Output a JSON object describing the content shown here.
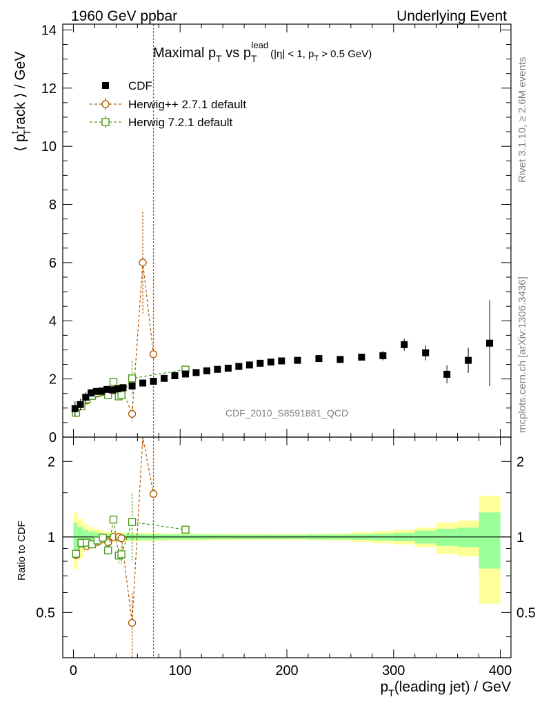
{
  "header": {
    "left": "1960 GeV ppbar",
    "right": "Underlying Event"
  },
  "side": {
    "rivet": "Rivet 3.1.10, ≥ 2.6M events",
    "mcplots": "mcplots.cern.ch [arXiv:1306.3436]"
  },
  "watermark": "CDF_2010_S8591881_QCD",
  "title": {
    "main": "Maximal p",
    "sub1": "T",
    "vs": " vs p",
    "sub2": "T",
    "sup": "lead",
    "cond": "(|η| < 1, p",
    "cond_sub": "T",
    "cond_end": " > 0.5 GeV)"
  },
  "ylabel_top": {
    "a": "⟨ p",
    "sup": "t",
    "sub": "T",
    "b": "rack ⟩ / GeV"
  },
  "ylabel_bottom": "Ratio to CDF",
  "xlabel": {
    "a": "p",
    "sub": "T",
    "b": "(leading jet) / GeV"
  },
  "colors": {
    "cdf": "#000000",
    "herwigpp": "#b35900",
    "herwig7": "#4c9a1a",
    "band_inner": "#99ff99",
    "band_outer": "#ffff99"
  },
  "chart_data": {
    "type": "scatter",
    "xlim": [
      -10,
      410
    ],
    "ylim": [
      0,
      14.2
    ],
    "ratio_ylim": [
      0.33,
      2.5
    ],
    "xticks": [
      0,
      100,
      200,
      300,
      400
    ],
    "yticks": [
      0,
      2,
      4,
      6,
      8,
      10,
      12,
      14
    ],
    "ratio_yticks": [
      0.5,
      1,
      2
    ],
    "legend_position": "top-left",
    "series": [
      {
        "name": "CDF",
        "key": "cdf",
        "marker": "filled-square",
        "x": [
          1.5,
          6.5,
          11.5,
          16.5,
          21.5,
          26.5,
          31.5,
          36.5,
          41.5,
          46.5,
          55,
          65,
          75,
          85,
          95,
          105,
          115,
          125,
          135,
          145,
          155,
          165,
          175,
          185,
          195,
          210,
          230,
          250,
          270,
          290,
          310,
          330,
          350,
          370,
          390
        ],
        "y": [
          0.98,
          1.12,
          1.37,
          1.52,
          1.57,
          1.58,
          1.64,
          1.62,
          1.66,
          1.7,
          1.76,
          1.86,
          1.92,
          2.02,
          2.11,
          2.17,
          2.22,
          2.28,
          2.33,
          2.37,
          2.43,
          2.48,
          2.54,
          2.58,
          2.62,
          2.64,
          2.7,
          2.67,
          2.75,
          2.8,
          3.18,
          2.9,
          2.16,
          2.64,
          3.23
        ],
        "err_stat": [
          0.06,
          0.05,
          0.05,
          0.05,
          0.05,
          0.05,
          0.05,
          0.05,
          0.05,
          0.05,
          0.05,
          0.05,
          0.05,
          0.05,
          0.05,
          0.05,
          0.05,
          0.05,
          0.05,
          0.05,
          0.05,
          0.05,
          0.05,
          0.05,
          0.05,
          0.05,
          0.06,
          0.06,
          0.07,
          0.09,
          0.12,
          0.17,
          0.17,
          0.22,
          0.5
        ],
        "err_tot": [
          0.25,
          0.2,
          0.17,
          0.14,
          0.12,
          0.1,
          0.08,
          0.08,
          0.07,
          0.07,
          0.07,
          0.07,
          0.07,
          0.07,
          0.07,
          0.07,
          0.07,
          0.07,
          0.07,
          0.07,
          0.07,
          0.07,
          0.07,
          0.07,
          0.07,
          0.07,
          0.08,
          0.09,
          0.12,
          0.16,
          0.21,
          0.26,
          0.31,
          0.43,
          1.48
        ]
      },
      {
        "name": "Herwig++ 2.7.1 default",
        "key": "herwigpp",
        "marker": "open-circle",
        "x": [
          2.5,
          7.5,
          12.5,
          17.5,
          22.5,
          27.5,
          32.5,
          37.5,
          42.5,
          45,
          55,
          65,
          75
        ],
        "y": [
          0.83,
          1.06,
          1.26,
          1.42,
          1.5,
          1.55,
          1.56,
          1.62,
          1.66,
          1.68,
          0.8,
          6.0,
          2.85
        ],
        "yerr": [
          0.03,
          0.03,
          0.03,
          0.04,
          0.04,
          0.04,
          0.05,
          0.05,
          0.06,
          0.06,
          0.25,
          1.75,
          14.0
        ]
      },
      {
        "name": "Herwig 7.2.1 default",
        "key": "herwig7",
        "marker": "open-square",
        "x": [
          2.5,
          7.5,
          12.5,
          17.5,
          22.5,
          27.5,
          32.5,
          37.5,
          42.5,
          45,
          55,
          105
        ],
        "y": [
          0.84,
          1.06,
          1.3,
          1.42,
          1.52,
          1.57,
          1.45,
          1.9,
          1.4,
          1.45,
          2.02,
          2.32
        ],
        "yerr": [
          0.03,
          0.03,
          0.03,
          0.04,
          0.04,
          0.05,
          0.06,
          0.07,
          0.1,
          0.12,
          0.6,
          0.05
        ]
      }
    ]
  }
}
